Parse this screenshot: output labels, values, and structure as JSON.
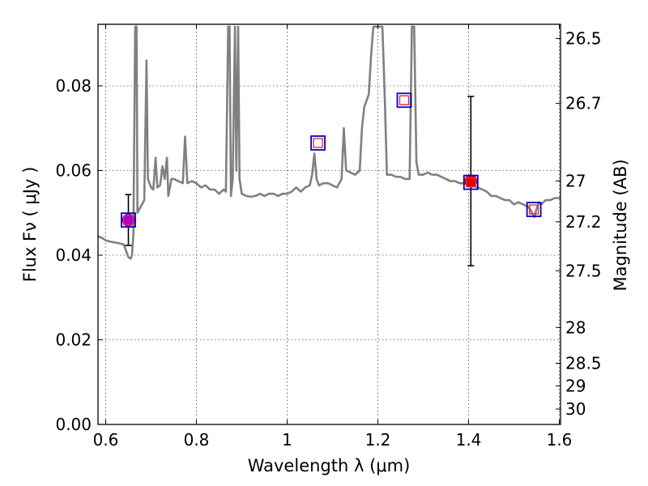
{
  "chart_data": {
    "type": "scatter",
    "xlabel": "Wavelength  λ (μm)",
    "ylabel": "Flux  Fν  ( μJy )",
    "y2label": "Magnitude (AB)",
    "xlim": [
      0.58,
      1.61
    ],
    "ylim": [
      0.0,
      0.094
    ],
    "x_ticks": [
      {
        "v": 0.6,
        "label": "0.6"
      },
      {
        "v": 0.8,
        "label": "0.8"
      },
      {
        "v": 1.0,
        "label": "1"
      },
      {
        "v": 1.2,
        "label": "1.2"
      },
      {
        "v": 1.4,
        "label": "1.4"
      },
      {
        "v": 1.6,
        "label": "1.6"
      }
    ],
    "y_ticks": [
      {
        "v": 0.0,
        "label": "0.00"
      },
      {
        "v": 0.02,
        "label": "0.02"
      },
      {
        "v": 0.04,
        "label": "0.04"
      },
      {
        "v": 0.06,
        "label": "0.06"
      },
      {
        "v": 0.08,
        "label": "0.08"
      }
    ],
    "mag_ticks": [
      {
        "v": 26.5,
        "label": "26.5"
      },
      {
        "v": 26.7,
        "label": "26.7"
      },
      {
        "v": 27.0,
        "label": "27"
      },
      {
        "v": 27.2,
        "label": "27.2"
      },
      {
        "v": 27.5,
        "label": "27.5"
      },
      {
        "v": 28.0,
        "label": "28"
      },
      {
        "v": 28.5,
        "label": "28.5"
      },
      {
        "v": 29.0,
        "label": "29"
      },
      {
        "v": 30.0,
        "label": "30"
      }
    ],
    "grid": true,
    "spectrum": {
      "color": "#808080",
      "points": [
        [
          0.58,
          0.0445
        ],
        [
          0.59,
          0.0442
        ],
        [
          0.6,
          0.0435
        ],
        [
          0.61,
          0.0432
        ],
        [
          0.62,
          0.043
        ],
        [
          0.63,
          0.0428
        ],
        [
          0.64,
          0.0425
        ],
        [
          0.645,
          0.041
        ],
        [
          0.65,
          0.0395
        ],
        [
          0.655,
          0.0392
        ],
        [
          0.658,
          0.04
        ],
        [
          0.661,
          0.045
        ],
        [
          0.665,
          0.094
        ],
        [
          0.668,
          0.094
        ],
        [
          0.67,
          0.05
        ],
        [
          0.675,
          0.051
        ],
        [
          0.68,
          0.052
        ],
        [
          0.685,
          0.053
        ],
        [
          0.69,
          0.086
        ],
        [
          0.693,
          0.058
        ],
        [
          0.7,
          0.056
        ],
        [
          0.705,
          0.0555
        ],
        [
          0.71,
          0.063
        ],
        [
          0.714,
          0.056
        ],
        [
          0.72,
          0.0565
        ],
        [
          0.725,
          0.061
        ],
        [
          0.73,
          0.058
        ],
        [
          0.735,
          0.063
        ],
        [
          0.738,
          0.054
        ],
        [
          0.745,
          0.058
        ],
        [
          0.75,
          0.058
        ],
        [
          0.76,
          0.0575
        ],
        [
          0.77,
          0.057
        ],
        [
          0.775,
          0.068
        ],
        [
          0.78,
          0.057
        ],
        [
          0.79,
          0.0575
        ],
        [
          0.8,
          0.057
        ],
        [
          0.81,
          0.056
        ],
        [
          0.82,
          0.0565
        ],
        [
          0.83,
          0.0555
        ],
        [
          0.84,
          0.0555
        ],
        [
          0.85,
          0.0545
        ],
        [
          0.86,
          0.0555
        ],
        [
          0.865,
          0.055
        ],
        [
          0.87,
          0.094
        ],
        [
          0.873,
          0.094
        ],
        [
          0.876,
          0.054
        ],
        [
          0.88,
          0.058
        ],
        [
          0.885,
          0.094
        ],
        [
          0.888,
          0.06
        ],
        [
          0.892,
          0.094
        ],
        [
          0.895,
          0.058
        ],
        [
          0.9,
          0.0545
        ],
        [
          0.91,
          0.054
        ],
        [
          0.92,
          0.0538
        ],
        [
          0.93,
          0.054
        ],
        [
          0.94,
          0.0545
        ],
        [
          0.95,
          0.054
        ],
        [
          0.96,
          0.0545
        ],
        [
          0.97,
          0.0545
        ],
        [
          0.98,
          0.054
        ],
        [
          0.99,
          0.0545
        ],
        [
          1.0,
          0.0545
        ],
        [
          1.01,
          0.055
        ],
        [
          1.02,
          0.056
        ],
        [
          1.03,
          0.055
        ],
        [
          1.04,
          0.056
        ],
        [
          1.05,
          0.0565
        ],
        [
          1.055,
          0.059
        ],
        [
          1.06,
          0.064
        ],
        [
          1.065,
          0.058
        ],
        [
          1.07,
          0.0565
        ],
        [
          1.08,
          0.057
        ],
        [
          1.09,
          0.057
        ],
        [
          1.1,
          0.0565
        ],
        [
          1.11,
          0.056
        ],
        [
          1.12,
          0.058
        ],
        [
          1.125,
          0.07
        ],
        [
          1.13,
          0.06
        ],
        [
          1.14,
          0.0595
        ],
        [
          1.15,
          0.059
        ],
        [
          1.16,
          0.06
        ],
        [
          1.165,
          0.07
        ],
        [
          1.17,
          0.075
        ],
        [
          1.18,
          0.078
        ],
        [
          1.185,
          0.087
        ],
        [
          1.19,
          0.094
        ],
        [
          1.2,
          0.094
        ],
        [
          1.21,
          0.094
        ],
        [
          1.215,
          0.078
        ],
        [
          1.22,
          0.059
        ],
        [
          1.23,
          0.059
        ],
        [
          1.24,
          0.0585
        ],
        [
          1.25,
          0.0585
        ],
        [
          1.26,
          0.058
        ],
        [
          1.27,
          0.058
        ],
        [
          1.275,
          0.094
        ],
        [
          1.28,
          0.094
        ],
        [
          1.285,
          0.062
        ],
        [
          1.29,
          0.059
        ],
        [
          1.3,
          0.059
        ],
        [
          1.31,
          0.0595
        ],
        [
          1.32,
          0.059
        ],
        [
          1.33,
          0.059
        ],
        [
          1.34,
          0.0585
        ],
        [
          1.35,
          0.058
        ],
        [
          1.36,
          0.0575
        ],
        [
          1.37,
          0.0575
        ],
        [
          1.38,
          0.057
        ],
        [
          1.39,
          0.057
        ],
        [
          1.4,
          0.0565
        ],
        [
          1.41,
          0.0565
        ],
        [
          1.42,
          0.056
        ],
        [
          1.43,
          0.0555
        ],
        [
          1.44,
          0.055
        ],
        [
          1.45,
          0.054
        ],
        [
          1.46,
          0.054
        ],
        [
          1.47,
          0.0535
        ],
        [
          1.48,
          0.053
        ],
        [
          1.49,
          0.053
        ],
        [
          1.5,
          0.052
        ],
        [
          1.51,
          0.0525
        ],
        [
          1.52,
          0.052
        ],
        [
          1.53,
          0.0515
        ],
        [
          1.535,
          0.051
        ],
        [
          1.54,
          0.05
        ],
        [
          1.545,
          0.049
        ],
        [
          1.55,
          0.051
        ],
        [
          1.555,
          0.0525
        ],
        [
          1.56,
          0.052
        ],
        [
          1.57,
          0.053
        ],
        [
          1.58,
          0.053
        ],
        [
          1.59,
          0.0535
        ],
        [
          1.6,
          0.0535
        ],
        [
          1.61,
          0.0535
        ]
      ]
    },
    "measurements": [
      {
        "x": 0.65,
        "y": 0.0483,
        "yerr_low": 0.0423,
        "yerr_high": 0.0543,
        "color": "#aa00cc"
      },
      {
        "x": 1.405,
        "y": 0.0575,
        "yerr_low": 0.0375,
        "yerr_high": 0.0775,
        "color": "#dd0000"
      }
    ],
    "model_photometry": [
      {
        "x": 0.65,
        "y": 0.0483
      },
      {
        "x": 1.068,
        "y": 0.0665
      },
      {
        "x": 1.258,
        "y": 0.0766
      },
      {
        "x": 1.405,
        "y": 0.0572
      },
      {
        "x": 1.544,
        "y": 0.0508
      }
    ],
    "colors": {
      "outer_square": "#0000cc",
      "inner_square": "#e03030",
      "errorbar": "#000000"
    }
  }
}
